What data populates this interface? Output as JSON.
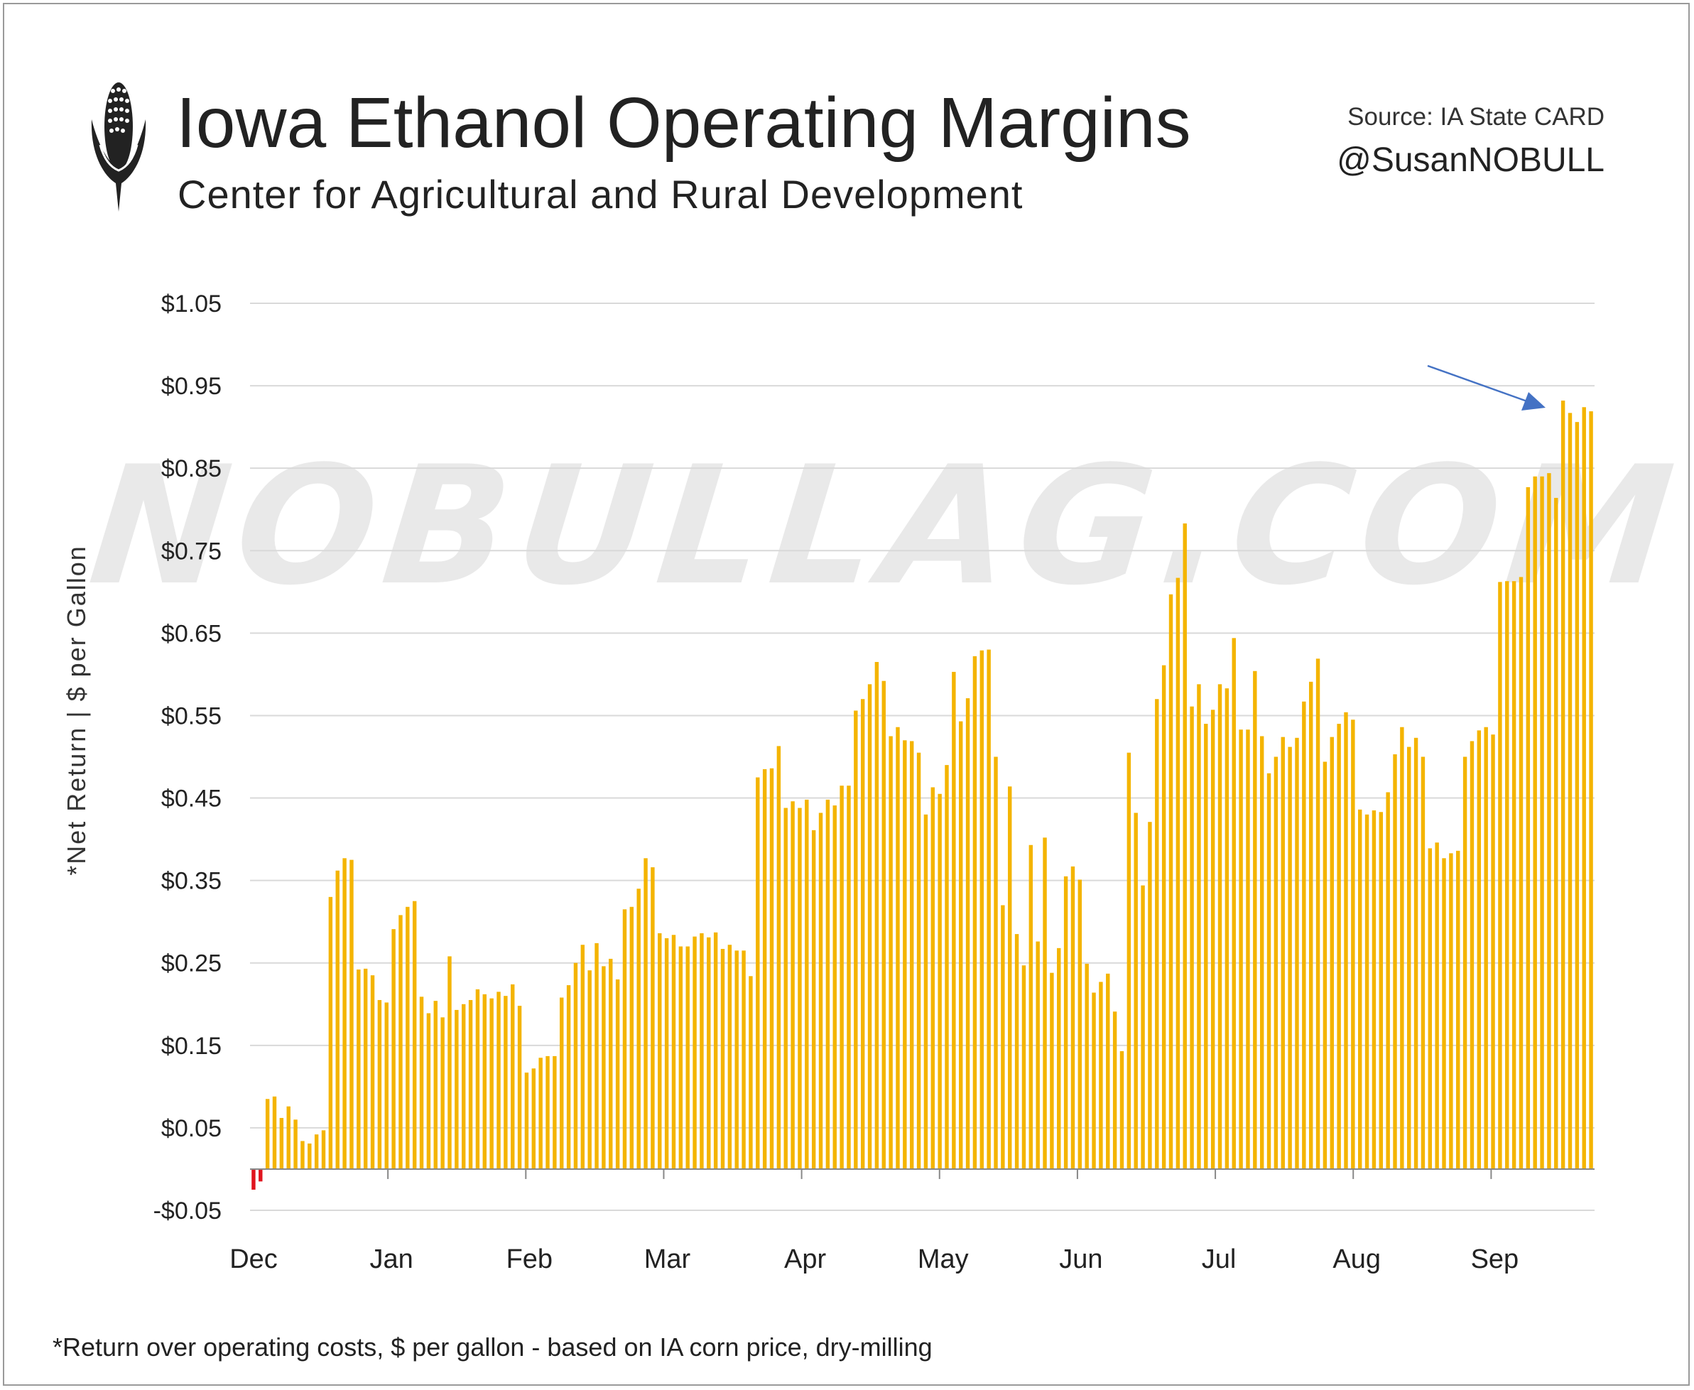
{
  "header": {
    "title": "Iowa Ethanol Operating Margins",
    "subtitle": "Center for Agricultural and Rural Development",
    "source": "Source: IA State CARD",
    "handle": "@SusanNOBULL"
  },
  "watermark": "NOBULLAG.COM",
  "footnote": "*Return over operating costs, $ per gallon - based on IA corn price, dry-milling",
  "colors": {
    "bar_positive": "#F4B400",
    "bar_negative": "#E0141E",
    "arrow": "#4472C4",
    "grid": "#d9d9d9",
    "axis": "#888888"
  },
  "chart_data": {
    "type": "bar",
    "title": "Iowa Ethanol Operating Margins",
    "subtitle": "Center for Agricultural and Rural Development",
    "ylabel": "*Net Return | $ per Gallon",
    "xlabel": "",
    "ylim": [
      -0.05,
      1.05
    ],
    "yticks": [
      -0.05,
      0.05,
      0.15,
      0.25,
      0.35,
      0.45,
      0.55,
      0.65,
      0.75,
      0.85,
      0.95,
      1.05
    ],
    "ytick_labels": [
      "-$0.05",
      "$0.05",
      "$0.15",
      "$0.25",
      "$0.35",
      "$0.45",
      "$0.55",
      "$0.65",
      "$0.75",
      "$0.85",
      "$0.95",
      "$1.05"
    ],
    "month_labels": [
      "Dec",
      "Jan",
      "Feb",
      "Mar",
      "Apr",
      "May",
      "Jun",
      "Jul",
      "Aug",
      "Sep"
    ],
    "grid": true,
    "annotation": "arrow pointing to latest September values",
    "values": [
      -0.025,
      -0.015,
      0.085,
      0.088,
      0.062,
      0.076,
      0.06,
      0.034,
      0.031,
      0.042,
      0.047,
      0.33,
      0.362,
      0.377,
      0.375,
      0.242,
      0.243,
      0.235,
      0.205,
      0.202,
      0.291,
      0.308,
      0.318,
      0.325,
      0.209,
      0.189,
      0.204,
      0.184,
      0.258,
      0.193,
      0.2,
      0.205,
      0.218,
      0.212,
      0.207,
      0.215,
      0.21,
      0.224,
      0.198,
      0.117,
      0.122,
      0.135,
      0.137,
      0.137,
      0.208,
      0.223,
      0.25,
      0.272,
      0.241,
      0.274,
      0.246,
      0.255,
      0.23,
      0.315,
      0.318,
      0.34,
      0.377,
      0.366,
      0.286,
      0.28,
      0.284,
      0.27,
      0.27,
      0.282,
      0.286,
      0.281,
      0.287,
      0.267,
      0.272,
      0.265,
      0.265,
      0.234,
      0.475,
      0.485,
      0.486,
      0.513,
      0.438,
      0.446,
      0.438,
      0.448,
      0.411,
      0.432,
      0.448,
      0.441,
      0.465,
      0.465,
      0.556,
      0.57,
      0.588,
      0.615,
      0.592,
      0.525,
      0.536,
      0.52,
      0.519,
      0.505,
      0.43,
      0.463,
      0.455,
      0.49,
      0.603,
      0.543,
      0.571,
      0.622,
      0.629,
      0.63,
      0.5,
      0.32,
      0.464,
      0.285,
      0.247,
      0.393,
      0.276,
      0.402,
      0.238,
      0.268,
      0.355,
      0.367,
      0.351,
      0.249,
      0.214,
      0.227,
      0.237,
      0.191,
      0.143,
      0.505,
      0.432,
      0.344,
      0.421,
      0.57,
      0.611,
      0.697,
      0.717,
      0.783,
      0.561,
      0.588,
      0.54,
      0.557,
      0.588,
      0.583,
      0.644,
      0.533,
      0.533,
      0.604,
      0.525,
      0.48,
      0.5,
      0.524,
      0.512,
      0.523,
      0.567,
      0.591,
      0.619,
      0.494,
      0.524,
      0.54,
      0.554,
      0.545,
      0.436,
      0.43,
      0.435,
      0.433,
      0.457,
      0.503,
      0.536,
      0.512,
      0.523,
      0.5,
      0.389,
      0.396,
      0.377,
      0.383,
      0.386,
      0.5,
      0.519,
      0.532,
      0.536,
      0.527,
      0.712,
      0.713,
      0.713,
      0.718,
      0.827,
      0.84,
      0.84,
      0.844,
      0.814,
      0.932,
      0.917,
      0.906,
      0.924,
      0.919
    ]
  }
}
